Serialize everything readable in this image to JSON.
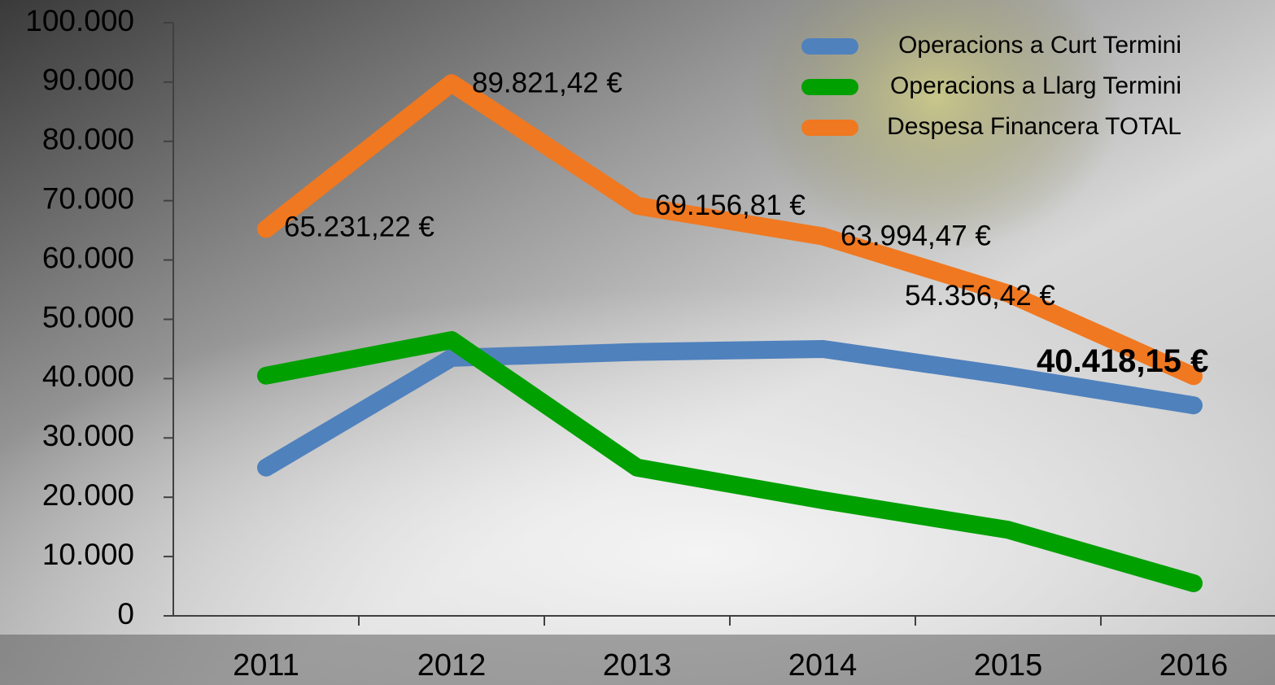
{
  "chart_data": {
    "type": "line",
    "categories": [
      "2011",
      "2012",
      "2013",
      "2014",
      "2015",
      "2016"
    ],
    "series": [
      {
        "name": "Operacions a Curt Termini",
        "color": "#4f81bd",
        "values": [
          25000,
          43500,
          44500,
          45000,
          40500,
          35500
        ]
      },
      {
        "name": "Operacions a Llarg Termini",
        "color": "#00a000",
        "values": [
          40500,
          46500,
          25000,
          19500,
          14500,
          5500
        ]
      },
      {
        "name": "Despesa Financera TOTAL",
        "color": "#f07820",
        "values": [
          65231.22,
          89821.42,
          69156.81,
          63994.47,
          54356.42,
          40418.15
        ],
        "value_labels": [
          "65.231,22 €",
          "89.821,42 €",
          "69.156,81 €",
          "63.994,47 €",
          "54.356,42 €",
          "40.418,15 €"
        ]
      }
    ],
    "ylim": [
      0,
      100000
    ],
    "yticks": [
      0,
      {
        "value": 10000,
        "label": "10.000"
      },
      {
        "value": 20000,
        "label": "20.000"
      },
      {
        "value": 30000,
        "label": "30.000"
      },
      {
        "value": 40000,
        "label": "40.000"
      },
      {
        "value": 50000,
        "label": "50.000"
      },
      {
        "value": 60000,
        "label": "60.000"
      },
      {
        "value": 70000,
        "label": "70.000"
      },
      {
        "value": 80000,
        "label": "80.000"
      },
      {
        "value": 90000,
        "label": "90.000"
      },
      {
        "value": 100000,
        "label": "100.000"
      }
    ],
    "legend": "top-right",
    "grid": false
  }
}
